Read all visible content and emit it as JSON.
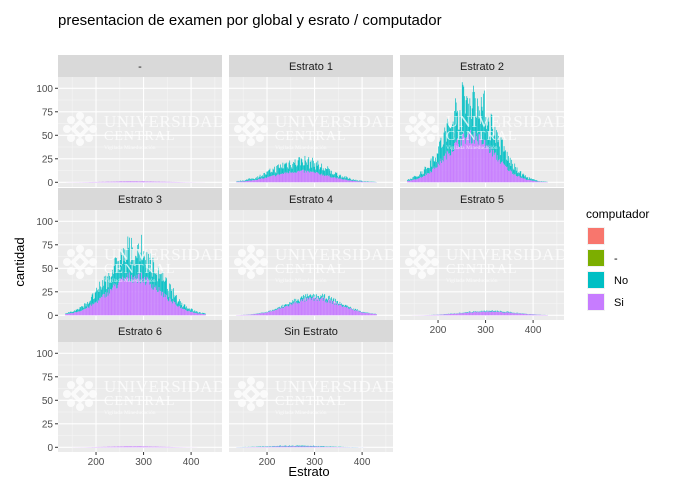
{
  "chart_data": {
    "type": "bar",
    "title": "presentacion de examen por global y esrato / computador",
    "xlabel": "Estrato",
    "ylabel": "cantidad",
    "xlim": [
      120,
      465
    ],
    "ylim": [
      -5,
      112
    ],
    "x_ticks": [
      200,
      300,
      400
    ],
    "y_ticks": [
      0,
      25,
      50,
      75,
      100
    ],
    "legend": {
      "title": "computador",
      "position": "right",
      "items": [
        {
          "label": "",
          "color": "#F8766D"
        },
        {
          "label": "-",
          "color": "#7CAE00"
        },
        {
          "label": "No",
          "color": "#00BFC4"
        },
        {
          "label": "Si",
          "color": "#C77CFF"
        }
      ]
    },
    "watermark": {
      "line1": "UNIVERSIDAD",
      "line2": "CENTRAL",
      "line3": "Vigilada Mineducación"
    },
    "panels": [
      {
        "label": "-",
        "center": 280,
        "spread": 60,
        "peak_si": 1,
        "peak_no": 1
      },
      {
        "label": "Estrato 1",
        "center": 270,
        "spread": 55,
        "peak_si": 12,
        "peak_no": 26
      },
      {
        "label": "Estrato 2",
        "center": 268,
        "spread": 50,
        "peak_si": 50,
        "peak_no": 103
      },
      {
        "label": "Estrato 3",
        "center": 280,
        "spread": 55,
        "peak_si": 42,
        "peak_no": 77
      },
      {
        "label": "Estrato 4",
        "center": 300,
        "spread": 55,
        "peak_si": 18,
        "peak_no": 22
      },
      {
        "label": "Estrato 5",
        "center": 305,
        "spread": 55,
        "peak_si": 4,
        "peak_no": 5
      },
      {
        "label": "Estrato 6",
        "center": 280,
        "spread": 55,
        "peak_si": 1,
        "peak_no": 1
      },
      {
        "label": "Sin Estrato",
        "center": 260,
        "spread": 60,
        "peak_si": 1,
        "peak_no": 2
      }
    ]
  }
}
